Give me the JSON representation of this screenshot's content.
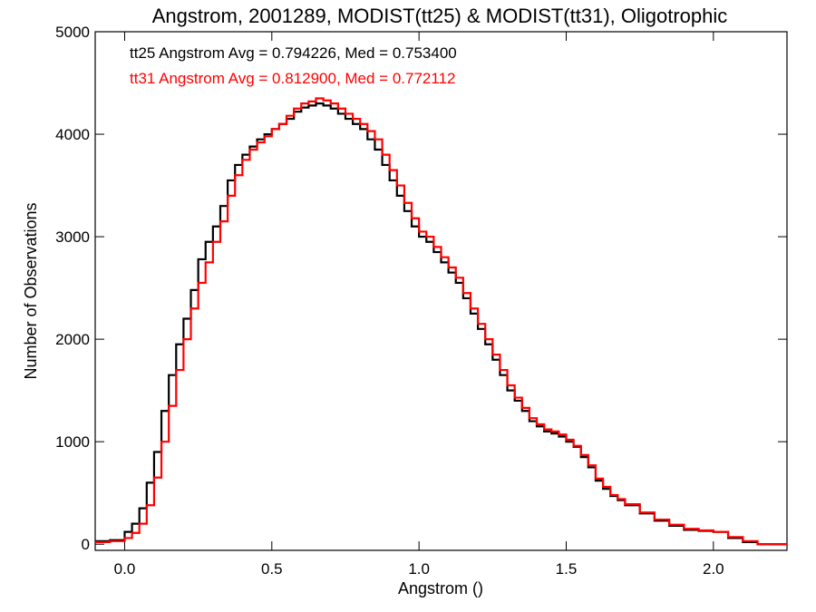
{
  "chart_data": {
    "type": "line",
    "title": "Angstrom, 2001289, MODIST(tt25) & MODIST(tt31), Oligotrophic",
    "xlabel": "Angstrom ()",
    "ylabel": "Number of Observations",
    "xlim": [
      -0.1,
      2.25
    ],
    "ylim": [
      -60,
      5000
    ],
    "x_ticks": [
      0.0,
      0.5,
      1.0,
      1.5,
      2.0
    ],
    "x_tick_labels": [
      "0.0",
      "0.5",
      "1.0",
      "1.5",
      "2.0"
    ],
    "y_ticks": [
      0,
      1000,
      2000,
      3000,
      4000,
      5000
    ],
    "y_tick_labels": [
      "0",
      "1000",
      "2000",
      "3000",
      "4000",
      "5000"
    ],
    "annotations": [
      {
        "text": "tt25 Angstrom Avg = 0.794226, Med = 0.753400",
        "color": "#000000"
      },
      {
        "text": "tt31 Angstrom Avg = 0.812900, Med = 0.772112",
        "color": "#ff0000"
      }
    ],
    "step": "histogram",
    "series": [
      {
        "color": "#000000",
        "x": [
          -0.1,
          -0.05,
          0.0,
          0.025,
          0.05,
          0.075,
          0.1,
          0.125,
          0.15,
          0.175,
          0.2,
          0.225,
          0.25,
          0.275,
          0.3,
          0.325,
          0.35,
          0.375,
          0.4,
          0.425,
          0.45,
          0.475,
          0.5,
          0.525,
          0.55,
          0.575,
          0.6,
          0.625,
          0.65,
          0.675,
          0.7,
          0.725,
          0.75,
          0.775,
          0.8,
          0.825,
          0.85,
          0.875,
          0.9,
          0.925,
          0.95,
          0.975,
          1.0,
          1.025,
          1.05,
          1.075,
          1.1,
          1.125,
          1.15,
          1.175,
          1.2,
          1.225,
          1.25,
          1.275,
          1.3,
          1.325,
          1.35,
          1.375,
          1.4,
          1.425,
          1.45,
          1.475,
          1.5,
          1.525,
          1.55,
          1.575,
          1.6,
          1.625,
          1.65,
          1.675,
          1.7,
          1.75,
          1.8,
          1.85,
          1.9,
          1.95,
          2.0,
          2.05,
          2.1,
          2.15,
          2.25
        ],
        "y": [
          30,
          40,
          120,
          200,
          350,
          600,
          900,
          1300,
          1650,
          1950,
          2200,
          2480,
          2780,
          2950,
          3100,
          3300,
          3550,
          3700,
          3800,
          3880,
          3950,
          4000,
          4050,
          4100,
          4150,
          4220,
          4260,
          4280,
          4300,
          4280,
          4250,
          4200,
          4150,
          4100,
          4050,
          3950,
          3850,
          3700,
          3550,
          3400,
          3250,
          3100,
          3000,
          2950,
          2850,
          2750,
          2650,
          2550,
          2400,
          2250,
          2100,
          1950,
          1800,
          1650,
          1500,
          1400,
          1300,
          1200,
          1150,
          1100,
          1080,
          1050,
          1000,
          950,
          850,
          750,
          620,
          540,
          470,
          430,
          380,
          300,
          230,
          180,
          140,
          130,
          120,
          60,
          20,
          0,
          0
        ]
      },
      {
        "color": "#ff0000",
        "x": [
          -0.1,
          -0.05,
          0.0,
          0.025,
          0.05,
          0.075,
          0.1,
          0.125,
          0.15,
          0.175,
          0.2,
          0.225,
          0.25,
          0.275,
          0.3,
          0.325,
          0.35,
          0.375,
          0.4,
          0.425,
          0.45,
          0.475,
          0.5,
          0.525,
          0.55,
          0.575,
          0.6,
          0.625,
          0.65,
          0.675,
          0.7,
          0.725,
          0.75,
          0.775,
          0.8,
          0.825,
          0.85,
          0.875,
          0.9,
          0.925,
          0.95,
          0.975,
          1.0,
          1.025,
          1.05,
          1.075,
          1.1,
          1.125,
          1.15,
          1.175,
          1.2,
          1.225,
          1.25,
          1.275,
          1.3,
          1.325,
          1.35,
          1.375,
          1.4,
          1.425,
          1.45,
          1.475,
          1.5,
          1.525,
          1.55,
          1.575,
          1.6,
          1.625,
          1.65,
          1.675,
          1.7,
          1.75,
          1.8,
          1.85,
          1.9,
          1.95,
          2.0,
          2.05,
          2.1,
          2.15,
          2.25
        ],
        "y": [
          20,
          30,
          60,
          110,
          200,
          380,
          650,
          1000,
          1350,
          1700,
          2000,
          2300,
          2550,
          2750,
          2950,
          3150,
          3400,
          3600,
          3750,
          3850,
          3920,
          3980,
          4050,
          4100,
          4180,
          4250,
          4300,
          4320,
          4350,
          4330,
          4300,
          4250,
          4200,
          4150,
          4100,
          4030,
          3950,
          3800,
          3650,
          3500,
          3330,
          3180,
          3050,
          3000,
          2900,
          2800,
          2700,
          2600,
          2450,
          2300,
          2150,
          2000,
          1850,
          1700,
          1550,
          1430,
          1330,
          1230,
          1170,
          1120,
          1100,
          1070,
          1020,
          960,
          870,
          770,
          640,
          560,
          480,
          440,
          390,
          310,
          240,
          190,
          150,
          135,
          120,
          70,
          30,
          0,
          0
        ]
      }
    ]
  }
}
